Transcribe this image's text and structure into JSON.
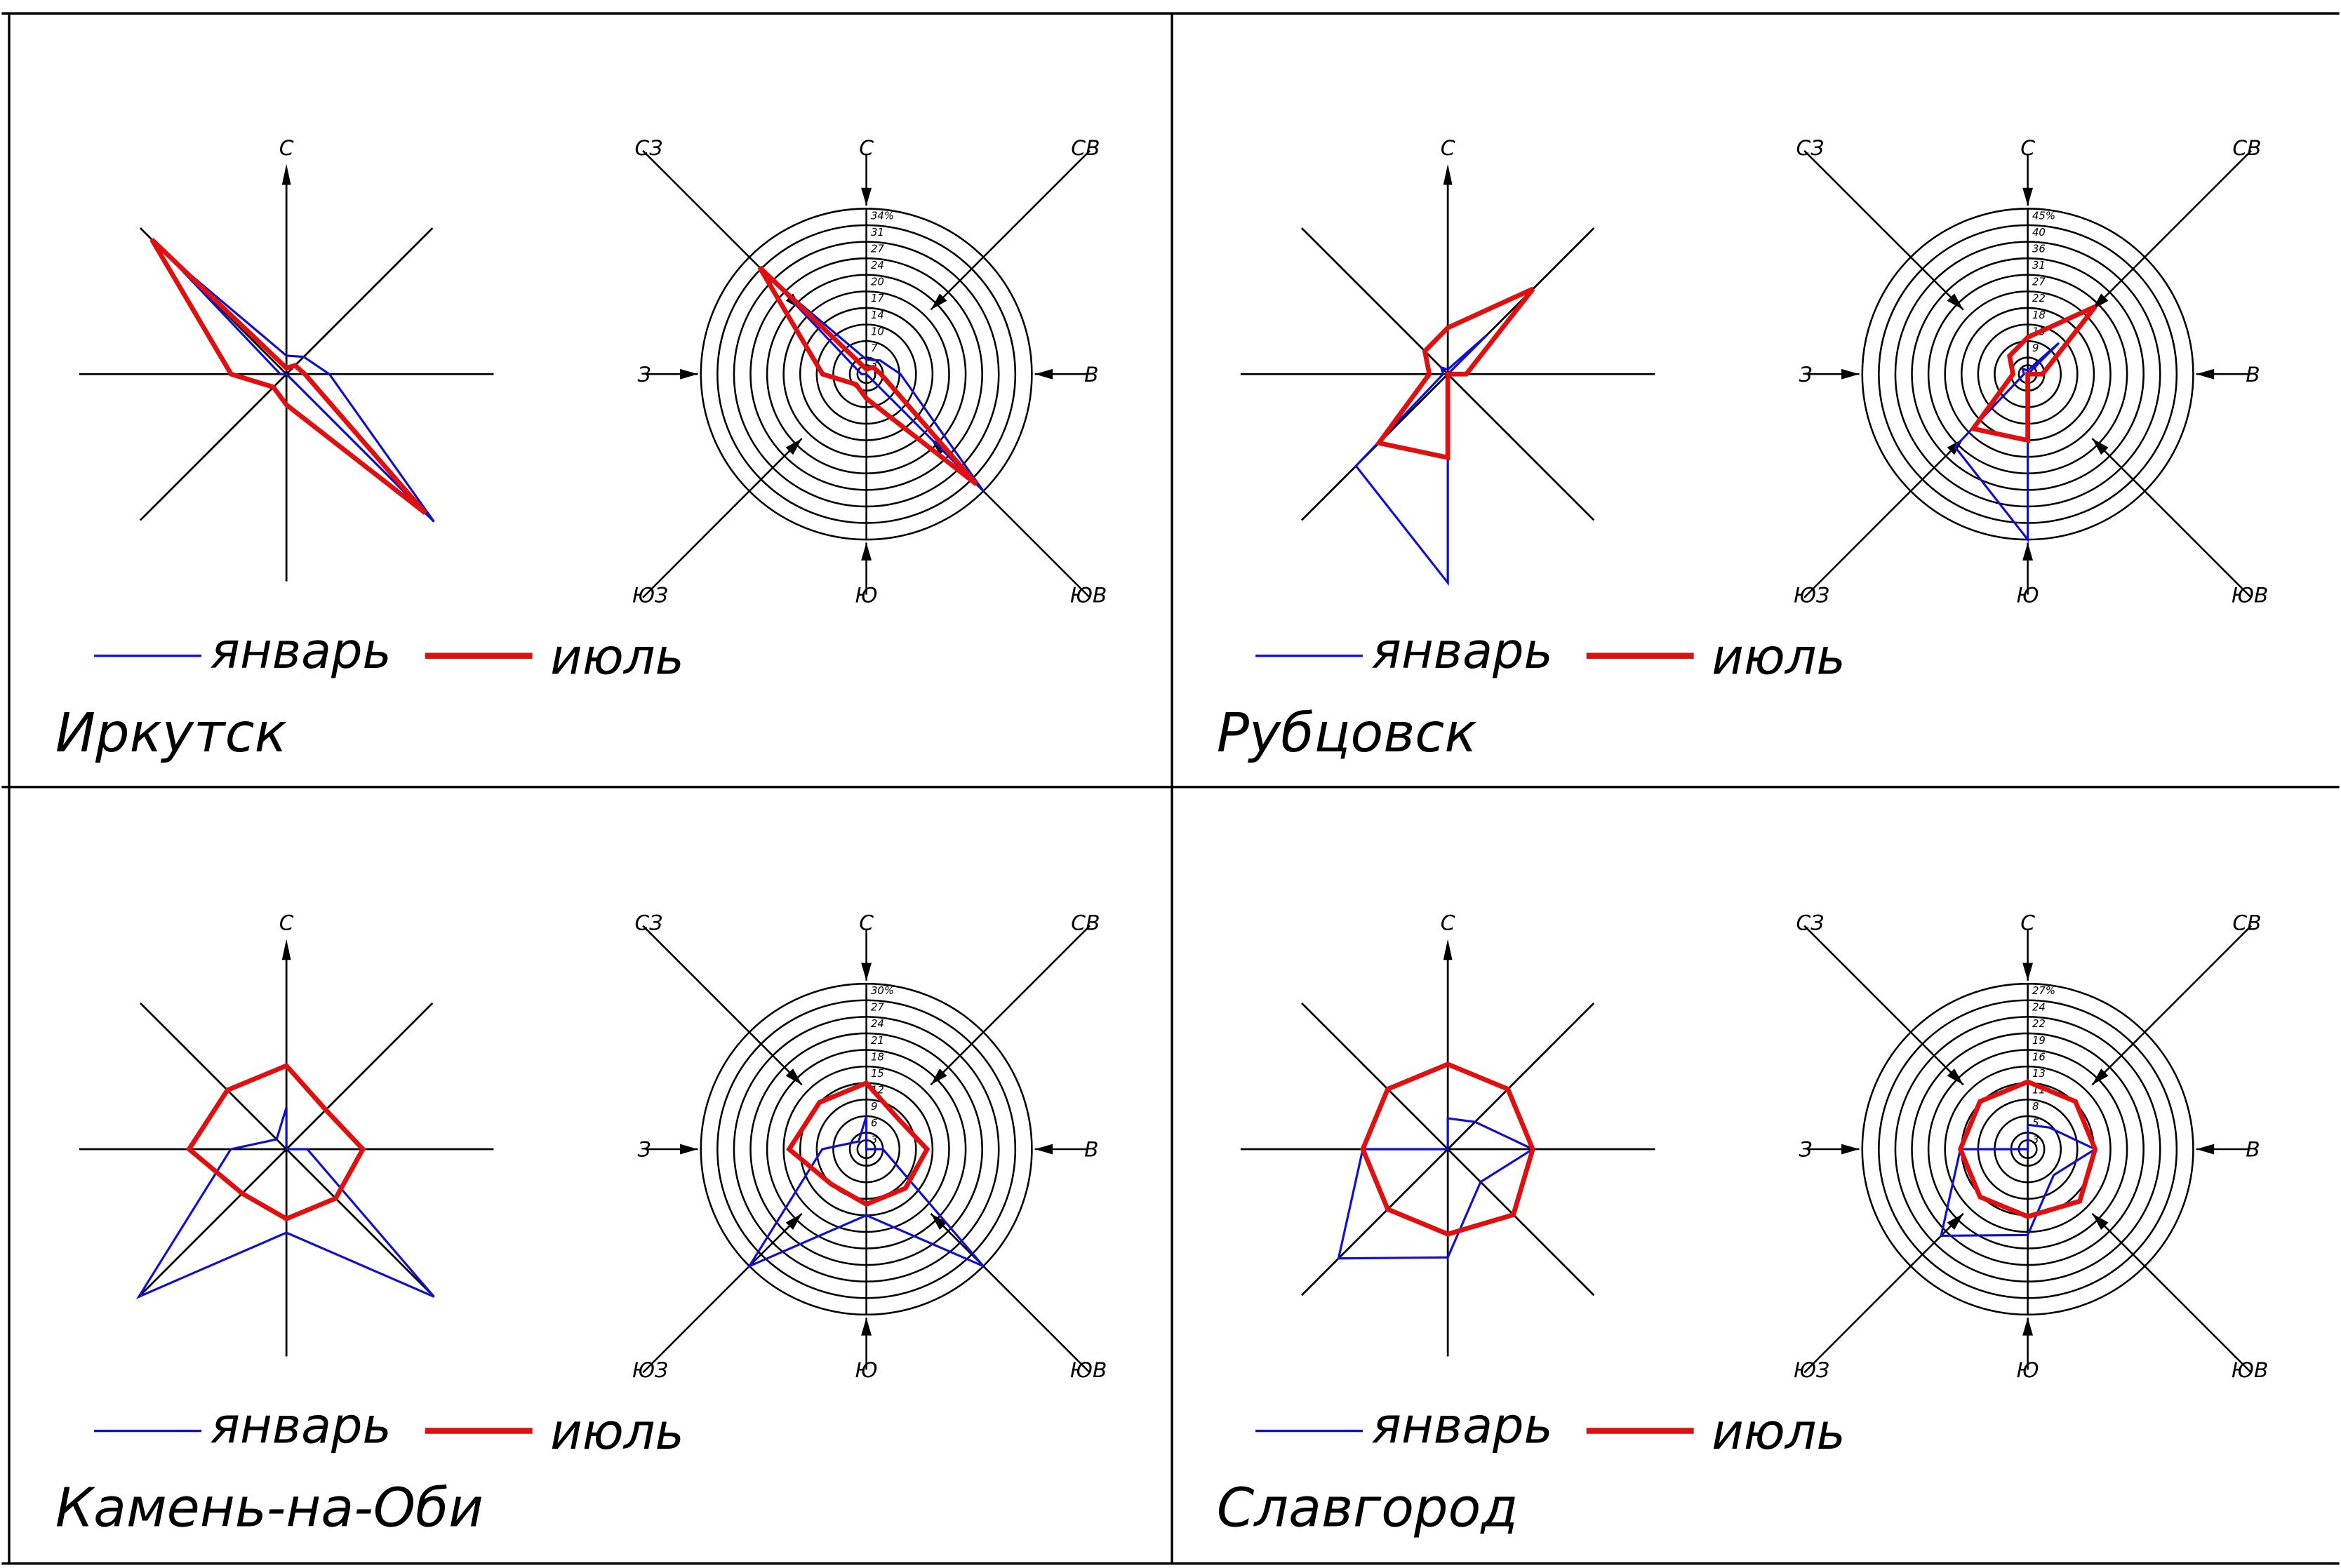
{
  "legend": {
    "january": "январь",
    "july": "июль"
  },
  "directions": [
    "С",
    "СВ",
    "В",
    "ЮВ",
    "Ю",
    "ЮЗ",
    "З",
    "СЗ"
  ],
  "colors": {
    "january": "#1111cc",
    "july": "#e01010",
    "lines": "#000000"
  },
  "chart_data": [
    {
      "type": "radar",
      "title": "Иркутск",
      "directions": [
        "С",
        "СВ",
        "В",
        "ЮВ",
        "Ю",
        "ЮЗ",
        "З",
        "СЗ"
      ],
      "rings": [
        "3",
        "7",
        "10",
        "14",
        "17",
        "20",
        "24",
        "27",
        "31",
        "34%"
      ],
      "max": 34,
      "series": [
        {
          "name": "январь",
          "values": [
            3,
            4,
            7,
            34,
            0,
            0,
            1,
            27
          ]
        },
        {
          "name": "июль",
          "values": [
            1,
            2,
            3,
            32,
            5,
            3,
            9,
            31
          ]
        }
      ]
    },
    {
      "type": "radar",
      "title": "Рубцовск",
      "directions": [
        "С",
        "СВ",
        "В",
        "ЮВ",
        "Ю",
        "ЮЗ",
        "З",
        "СЗ"
      ],
      "rings": [
        "4",
        "9",
        "13",
        "18",
        "22",
        "27",
        "31",
        "36",
        "40",
        "45%"
      ],
      "max": 45,
      "series": [
        {
          "name": "январь",
          "values": [
            1,
            12,
            0,
            0,
            45,
            28,
            1,
            2
          ]
        },
        {
          "name": "июль",
          "values": [
            10,
            26,
            4,
            0,
            18,
            21,
            4,
            7
          ]
        }
      ]
    },
    {
      "type": "radar",
      "title": "Камень-на-Оби",
      "directions": [
        "С",
        "СВ",
        "В",
        "ЮВ",
        "Ю",
        "ЮЗ",
        "З",
        "СЗ"
      ],
      "rings": [
        "3",
        "6",
        "9",
        "12",
        "15",
        "18",
        "21",
        "24",
        "27",
        "30%"
      ],
      "max": 30,
      "series": [
        {
          "name": "январь",
          "values": [
            6,
            0,
            3,
            30,
            12,
            30,
            8,
            2
          ]
        },
        {
          "name": "июль",
          "values": [
            12,
            8,
            11,
            10,
            10,
            9,
            14,
            12
          ]
        }
      ]
    },
    {
      "type": "radar",
      "title": "Славгород",
      "directions": [
        "С",
        "СВ",
        "В",
        "ЮВ",
        "Ю",
        "ЮЗ",
        "З",
        "СЗ"
      ],
      "rings": [
        "3",
        "5",
        "8",
        "11",
        "13",
        "16",
        "19",
        "22",
        "24",
        "27%"
      ],
      "max": 27,
      "series": [
        {
          "name": "январь",
          "values": [
            4,
            5,
            11,
            6,
            14,
            20,
            11,
            0
          ]
        },
        {
          "name": "июль",
          "values": [
            11,
            11,
            11,
            12,
            11,
            11,
            11,
            11
          ]
        }
      ]
    }
  ]
}
